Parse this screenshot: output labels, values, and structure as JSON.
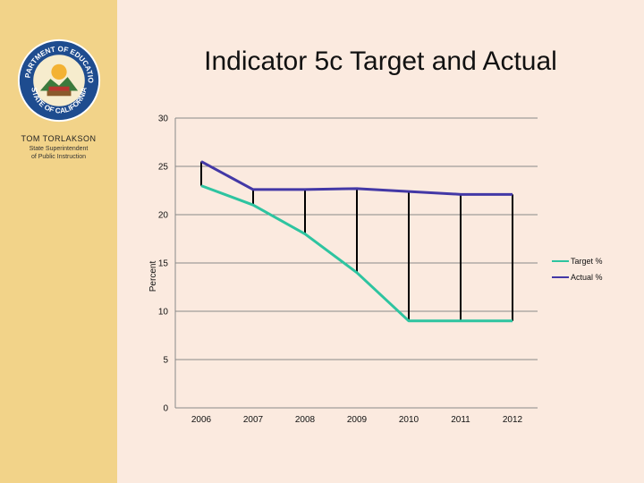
{
  "page": {
    "title": "Indicator 5c Target and Actual"
  },
  "sidebar": {
    "seal_text_top": "DEPARTMENT OF EDUCATION",
    "seal_text_bottom": "STATE OF CALIFORNIA",
    "name": "TOM TORLAKSON",
    "role_line1": "State Superintendent",
    "role_line2": "of Public Instruction"
  },
  "colors": {
    "background": "#fbeadf",
    "sidebar": "#f2d389",
    "target": "#2ec4a0",
    "actual": "#4338a6",
    "drop_lines": "#000000",
    "grid": "#8a8a8a"
  },
  "chart_data": {
    "type": "line",
    "title": "Indicator 5c Target and Actual",
    "xlabel": "",
    "ylabel": "Percent",
    "categories": [
      "2006",
      "2007",
      "2008",
      "2009",
      "2010",
      "2011",
      "2012"
    ],
    "series": [
      {
        "name": "Target %",
        "values": [
          23.0,
          21.0,
          18.0,
          14.0,
          9.0,
          9.0,
          9.0
        ]
      },
      {
        "name": "Actual %",
        "values": [
          25.5,
          22.6,
          22.6,
          22.7,
          22.4,
          22.1,
          22.1
        ]
      }
    ],
    "ylim": [
      0,
      30
    ],
    "yticks": [
      0,
      5,
      10,
      15,
      20,
      25,
      30
    ],
    "grid": true,
    "drop_lines": true,
    "legend_position": "right"
  }
}
